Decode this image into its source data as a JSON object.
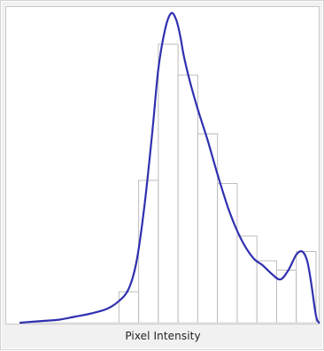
{
  "chart_data": {
    "type": "bar",
    "title": "",
    "xlabel": "Pixel Intensity",
    "ylabel": "",
    "grid": false,
    "xlim": [
      0,
      15
    ],
    "ylim": [
      0,
      1.0
    ],
    "bins": [
      {
        "x0": 0,
        "x1": 1,
        "value": 0
      },
      {
        "x0": 1,
        "x1": 2,
        "value": 0
      },
      {
        "x0": 2,
        "x1": 3,
        "value": 0
      },
      {
        "x0": 3,
        "x1": 4,
        "value": 0
      },
      {
        "x0": 4,
        "x1": 5,
        "value": 0
      },
      {
        "x0": 5,
        "x1": 6,
        "value": 0.1
      },
      {
        "x0": 6,
        "x1": 7,
        "value": 0.46
      },
      {
        "x0": 7,
        "x1": 8,
        "value": 0.9
      },
      {
        "x0": 8,
        "x1": 9,
        "value": 0.8
      },
      {
        "x0": 9,
        "x1": 10,
        "value": 0.61
      },
      {
        "x0": 10,
        "x1": 11,
        "value": 0.45
      },
      {
        "x0": 11,
        "x1": 12,
        "value": 0.28
      },
      {
        "x0": 12,
        "x1": 13,
        "value": 0.2
      },
      {
        "x0": 13,
        "x1": 14,
        "value": 0.17
      },
      {
        "x0": 14,
        "x1": 15,
        "value": 0.23
      }
    ],
    "curve": {
      "x": [
        0,
        1,
        2,
        2.8,
        3.6,
        4.4,
        5,
        5.5,
        5.9,
        6.3,
        6.7,
        7,
        7.35,
        7.65,
        7.9,
        8.1,
        8.3,
        8.6,
        9,
        9.5,
        10,
        10.6,
        11.2,
        11.8,
        12.3,
        12.8,
        13.2,
        13.6,
        14,
        14.3,
        14.55,
        14.75,
        14.95,
        15.05,
        15.15
      ],
      "y": [
        0.0,
        0.005,
        0.01,
        0.02,
        0.03,
        0.045,
        0.07,
        0.11,
        0.2,
        0.38,
        0.62,
        0.82,
        0.95,
        1.0,
        0.98,
        0.93,
        0.86,
        0.78,
        0.69,
        0.59,
        0.48,
        0.36,
        0.27,
        0.21,
        0.185,
        0.155,
        0.14,
        0.17,
        0.22,
        0.23,
        0.2,
        0.13,
        0.04,
        0.01,
        0.0
      ]
    },
    "colors": {
      "curve": "#3030b0",
      "bar_stroke": "#bdbdbd",
      "bar_fill": "#ffffff"
    }
  }
}
